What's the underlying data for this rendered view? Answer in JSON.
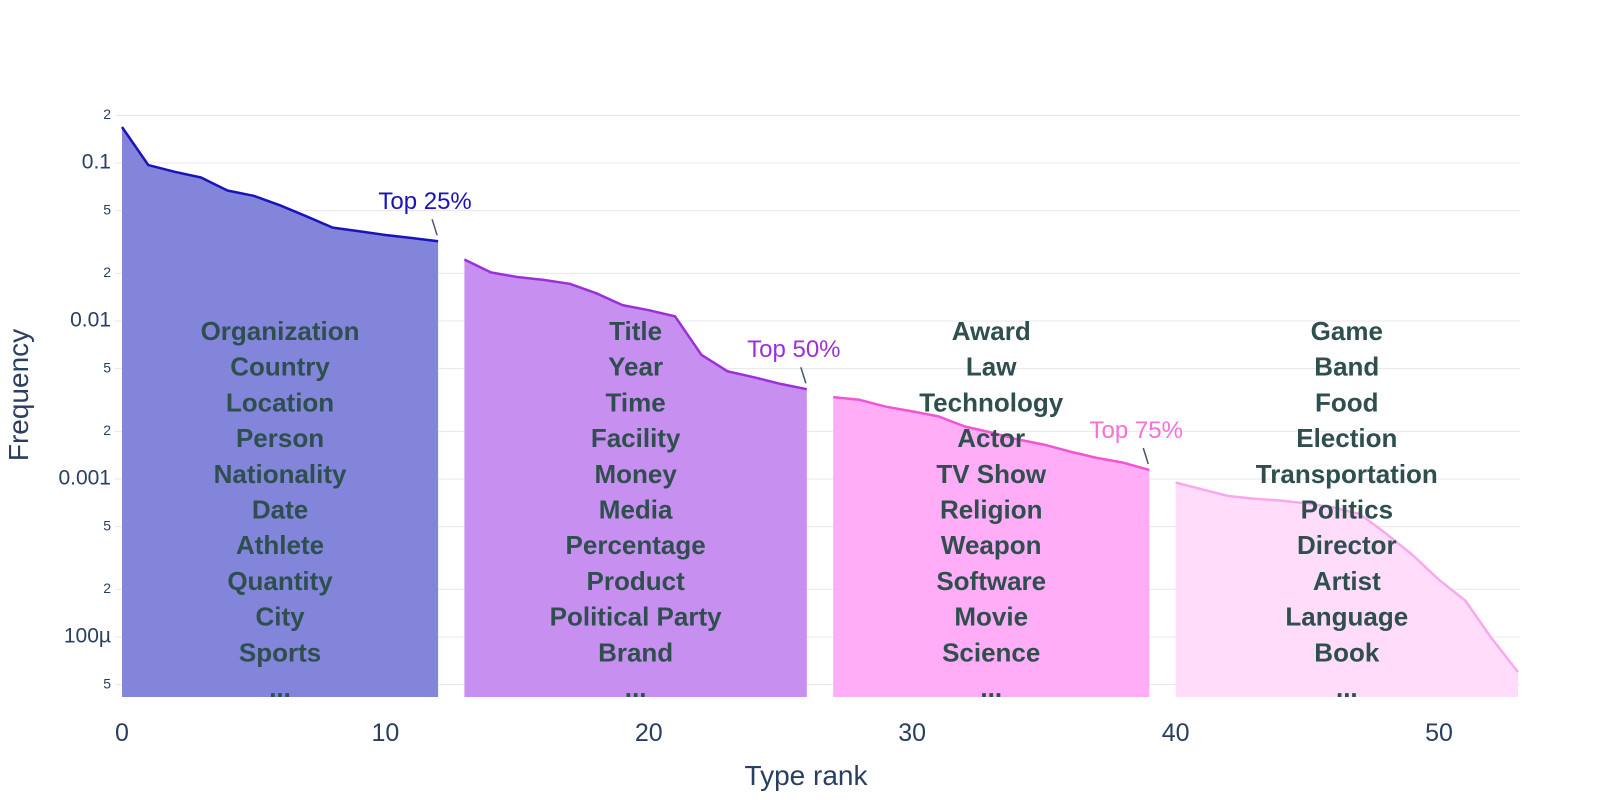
{
  "chart_data": {
    "type": "area",
    "title": "",
    "xlabel": "Type rank",
    "ylabel": "Frequency",
    "y_scale": "log",
    "grid": true,
    "xlim": [
      0,
      53
    ],
    "ylim": [
      4e-05,
      0.22
    ],
    "x_ticks": [
      {
        "label": "0",
        "value": 0
      },
      {
        "label": "10",
        "value": 10
      },
      {
        "label": "20",
        "value": 20
      },
      {
        "label": "30",
        "value": 30
      },
      {
        "label": "40",
        "value": 40
      },
      {
        "label": "50",
        "value": 50
      }
    ],
    "y_ticks": [
      {
        "label": "2",
        "value": 0.2,
        "major": false
      },
      {
        "label": "0.1",
        "value": 0.1,
        "major": true
      },
      {
        "label": "5",
        "value": 0.05,
        "major": false
      },
      {
        "label": "2",
        "value": 0.02,
        "major": false
      },
      {
        "label": "0.01",
        "value": 0.01,
        "major": true
      },
      {
        "label": "5",
        "value": 0.005,
        "major": false
      },
      {
        "label": "2",
        "value": 0.002,
        "major": false
      },
      {
        "label": "0.001",
        "value": 0.001,
        "major": true
      },
      {
        "label": "5",
        "value": 0.0005,
        "major": false
      },
      {
        "label": "2",
        "value": 0.0002,
        "major": false
      },
      {
        "label": "100µ",
        "value": 0.0001,
        "major": true
      },
      {
        "label": "5",
        "value": 5e-05,
        "major": false
      }
    ],
    "segments": [
      {
        "id": "top-25",
        "annotation": "Top 25%",
        "annotation_color": "#1b13b9",
        "fill_color": "#8285da",
        "line_color": "#1b13b9",
        "ranks": [
          0,
          1,
          2,
          3,
          4,
          5,
          6,
          7,
          8,
          9,
          10,
          11,
          12
        ],
        "frequencies": [
          0.169,
          0.097,
          0.088,
          0.081,
          0.067,
          0.062,
          0.054,
          0.046,
          0.039,
          0.037,
          0.035,
          0.0335,
          0.032
        ],
        "types": [
          "Organization",
          "Country",
          "Location",
          "Person",
          "Nationality",
          "Date",
          "Athlete",
          "Quantity",
          "City",
          "Sports",
          "..."
        ]
      },
      {
        "id": "top-50",
        "annotation": "Top 50%",
        "annotation_color": "#9c30d8",
        "fill_color": "#c78ff0",
        "line_color": "#9c30d8",
        "ranks": [
          13,
          14,
          15,
          16,
          17,
          18,
          19,
          20,
          21,
          22,
          23,
          24,
          25,
          26
        ],
        "frequencies": [
          0.0245,
          0.0203,
          0.019,
          0.0182,
          0.0172,
          0.015,
          0.0126,
          0.0117,
          0.0107,
          0.0061,
          0.0048,
          0.0044,
          0.004,
          0.0037
        ],
        "types": [
          "Title",
          "Year",
          "Time",
          "Facility",
          "Money",
          "Media",
          "Percentage",
          "Product",
          "Political Party",
          "Brand",
          "..."
        ]
      },
      {
        "id": "top-75",
        "annotation": "Top 75%",
        "annotation_color": "#f76fd7",
        "fill_color": "#ffadf6",
        "line_color": "#f155d3",
        "ranks": [
          27,
          28,
          29,
          30,
          31,
          32,
          33,
          34,
          35,
          36,
          37,
          38,
          39
        ],
        "frequencies": [
          0.0033,
          0.00317,
          0.00287,
          0.00268,
          0.00249,
          0.00215,
          0.00197,
          0.00178,
          0.00165,
          0.00149,
          0.00136,
          0.00127,
          0.00114
        ],
        "types": [
          "Award",
          "Law",
          "Technology",
          "Actor",
          "TV Show",
          "Religion",
          "Weapon",
          "Software",
          "Movie",
          "Science",
          "..."
        ]
      },
      {
        "id": "top-100",
        "annotation": null,
        "annotation_color": null,
        "fill_color": "#ffdcfa",
        "line_color": "#f8a9ec",
        "ranks": [
          40,
          41,
          42,
          43,
          44,
          45,
          46,
          47,
          48,
          49,
          50,
          51,
          52,
          53
        ],
        "frequencies": [
          0.00095,
          0.00086,
          0.00078,
          0.00075,
          0.00073,
          0.0007,
          0.00066,
          0.0006,
          0.00045,
          0.00033,
          0.00023,
          0.00017,
          9.8e-05,
          6e-05
        ],
        "types": [
          "Game",
          "Band",
          "Food",
          "Election",
          "Transportation",
          "Politics",
          "Director",
          "Artist",
          "Language",
          "Book",
          "..."
        ]
      }
    ],
    "colors": {
      "grid": "#e7e7ea",
      "axis_text": "#2a3f5f",
      "type_text": "#2f4f4f",
      "annotation_pointer": "#4a5568",
      "background": "#ffffff"
    }
  }
}
